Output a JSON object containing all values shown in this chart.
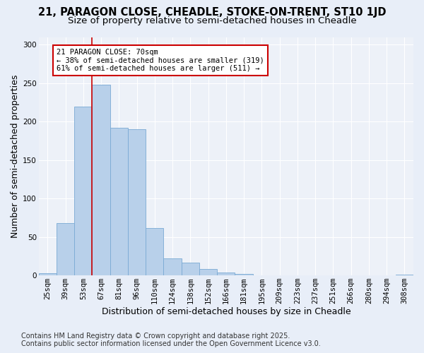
{
  "title_line1": "21, PARAGON CLOSE, CHEADLE, STOKE-ON-TRENT, ST10 1JD",
  "title_line2": "Size of property relative to semi-detached houses in Cheadle",
  "xlabel": "Distribution of semi-detached houses by size in Cheadle",
  "ylabel": "Number of semi-detached properties",
  "categories": [
    "25sqm",
    "39sqm",
    "53sqm",
    "67sqm",
    "81sqm",
    "96sqm",
    "110sqm",
    "124sqm",
    "138sqm",
    "152sqm",
    "166sqm",
    "181sqm",
    "195sqm",
    "209sqm",
    "223sqm",
    "237sqm",
    "251sqm",
    "266sqm",
    "280sqm",
    "294sqm",
    "308sqm"
  ],
  "values": [
    3,
    68,
    220,
    248,
    192,
    190,
    62,
    22,
    17,
    8,
    4,
    2,
    0,
    0,
    0,
    0,
    0,
    0,
    0,
    0,
    1
  ],
  "bar_color": "#b8d0ea",
  "bar_edge_color": "#7aaad4",
  "vline_color": "#cc0000",
  "vline_position": 2.5,
  "annotation_text_line1": "21 PARAGON CLOSE: 70sqm",
  "annotation_text_line2": "← 38% of semi-detached houses are smaller (319)",
  "annotation_text_line3": "61% of semi-detached houses are larger (511) →",
  "annotation_box_color": "#cc0000",
  "ylim": [
    0,
    310
  ],
  "yticks": [
    0,
    50,
    100,
    150,
    200,
    250,
    300
  ],
  "footer_line1": "Contains HM Land Registry data © Crown copyright and database right 2025.",
  "footer_line2": "Contains public sector information licensed under the Open Government Licence v3.0.",
  "bg_color": "#e8eef8",
  "plot_bg_color": "#edf1f8",
  "title_fontsize": 10.5,
  "subtitle_fontsize": 9.5,
  "axis_label_fontsize": 9,
  "tick_fontsize": 7.5,
  "footer_fontsize": 7
}
